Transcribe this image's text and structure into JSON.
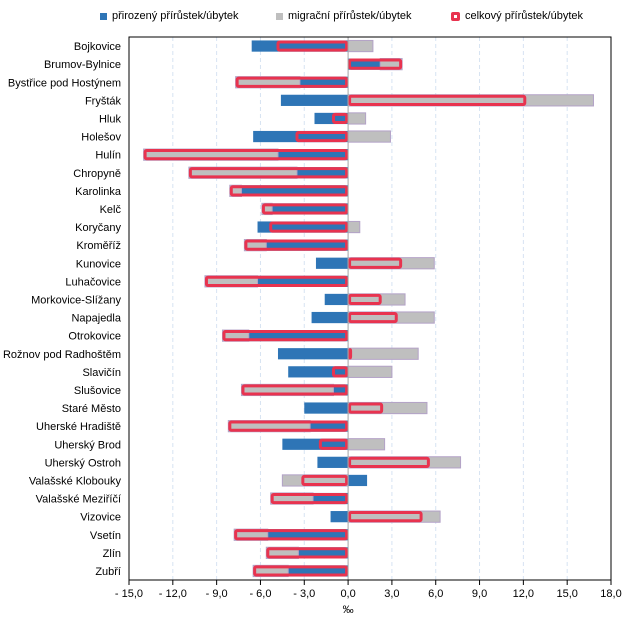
{
  "chart_data": {
    "type": "bar",
    "orientation": "horizontal",
    "stacked": true,
    "title": "",
    "xlabel": "‰",
    "ylabel": "",
    "xlim": [
      -15,
      18
    ],
    "xticks": [
      -15,
      -12,
      -9,
      -6,
      -3,
      0,
      3,
      6,
      9,
      12,
      15,
      18
    ],
    "xtick_labels": [
      "- 15,0",
      "- 12,0",
      "- 9,0",
      "- 6,0",
      "- 3,0",
      "0,0",
      "3,0",
      "6,0",
      "9,0",
      "12,0",
      "15,0",
      "18,0"
    ],
    "grid": "vertical dashed",
    "legend_position": "top",
    "categories": [
      "Bojkovice",
      "Brumov-Bylnice",
      "Bystřice pod Hostýnem",
      "Fryšták",
      "Hluk",
      "Holešov",
      "Hulín",
      "Chropyně",
      "Karolinka",
      "Kelč",
      "Koryčany",
      "Kroměříž",
      "Kunovice",
      "Luhačovice",
      "Morkovice-Slížany",
      "Napajedla",
      "Otrokovice",
      "Rožnov pod Radhoštěm",
      "Slavičín",
      "Slušovice",
      "Staré Město",
      "Uherské Hradiště",
      "Uherský Brod",
      "Uherský Ostroh",
      "Valašské Klobouky",
      "Valašské Meziříčí",
      "Vizovice",
      "Vsetín",
      "Zlín",
      "Zubří"
    ],
    "series": [
      {
        "name": "přirozený přírůstek/úbytek",
        "style": "bar",
        "color": "#2E75B6",
        "values": [
          -6.6,
          2.2,
          -3.3,
          -4.6,
          -2.3,
          -6.5,
          -4.8,
          -3.5,
          -7.3,
          -5.2,
          -6.2,
          -5.6,
          -2.2,
          -6.2,
          -1.6,
          -2.5,
          -6.8,
          -4.8,
          -4.1,
          -1.0,
          -3.0,
          -2.6,
          -4.5,
          -2.1,
          1.3,
          -2.4,
          -1.2,
          -5.5,
          -3.4,
          -4.1
        ]
      },
      {
        "name": "migrační přírůstek/úbytek",
        "style": "bar",
        "color": "#BFBFBF",
        "values": [
          1.7,
          1.5,
          -4.4,
          16.8,
          1.2,
          2.9,
          -9.2,
          -7.4,
          -0.8,
          -0.7,
          0.8,
          -1.5,
          5.9,
          -3.6,
          3.9,
          5.9,
          -1.8,
          4.8,
          3.0,
          -6.3,
          5.4,
          -5.6,
          2.5,
          7.7,
          -4.5,
          -2.9,
          6.3,
          -2.3,
          -2.2,
          -2.4
        ]
      },
      {
        "name": "celkový přírůstek/úbytek",
        "style": "outline",
        "color": "#E8334F",
        "values": [
          -4.9,
          3.7,
          -7.7,
          12.2,
          -1.1,
          -3.6,
          -14.0,
          -10.9,
          -8.1,
          -5.9,
          -5.4,
          -7.1,
          3.7,
          -9.8,
          2.3,
          3.4,
          -8.6,
          0.0,
          -1.1,
          -7.3,
          2.4,
          -8.2,
          -2.0,
          5.6,
          -3.2,
          -5.3,
          5.1,
          -7.8,
          -5.6,
          -6.5
        ]
      }
    ]
  }
}
